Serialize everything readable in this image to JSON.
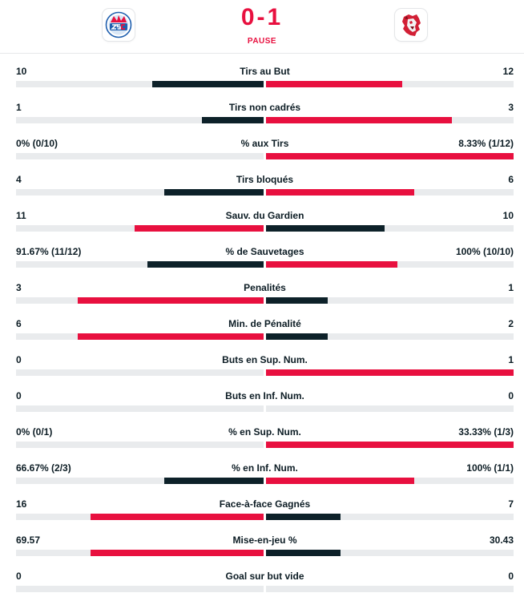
{
  "header": {
    "home_logo": "zsc-lions-logo",
    "away_logo": "lausanne-lion-logo",
    "score": "0-1",
    "status": "PAUSE"
  },
  "colors": {
    "leader": "#e8103f",
    "trailer": "#0d2129",
    "track": "#e9ebed"
  },
  "stats": [
    {
      "label": "Tirs au But",
      "left": "10",
      "right": "12",
      "left_fill": 0.45,
      "right_fill": 0.55,
      "lead": "right"
    },
    {
      "label": "Tirs non cadrés",
      "left": "1",
      "right": "3",
      "left_fill": 0.25,
      "right_fill": 0.75,
      "lead": "right"
    },
    {
      "label": "% aux Tirs",
      "left": "0% (0/10)",
      "right": "8.33% (1/12)",
      "left_fill": 0,
      "right_fill": 1,
      "lead": "right"
    },
    {
      "label": "Tirs bloqués",
      "left": "4",
      "right": "6",
      "left_fill": 0.4,
      "right_fill": 0.6,
      "lead": "right"
    },
    {
      "label": "Sauv. du Gardien",
      "left": "11",
      "right": "10",
      "left_fill": 0.52,
      "right_fill": 0.48,
      "lead": "left"
    },
    {
      "label": "% de Sauvetages",
      "left": "91.67% (11/12)",
      "right": "100% (10/10)",
      "left_fill": 0.47,
      "right_fill": 0.53,
      "lead": "right"
    },
    {
      "label": "Penalités",
      "left": "3",
      "right": "1",
      "left_fill": 0.75,
      "right_fill": 0.25,
      "lead": "left"
    },
    {
      "label": "Min. de Pénalité",
      "left": "6",
      "right": "2",
      "left_fill": 0.75,
      "right_fill": 0.25,
      "lead": "left"
    },
    {
      "label": "Buts en Sup. Num.",
      "left": "0",
      "right": "1",
      "left_fill": 0,
      "right_fill": 1,
      "lead": "right"
    },
    {
      "label": "Buts en Inf. Num.",
      "left": "0",
      "right": "0",
      "left_fill": 0,
      "right_fill": 0,
      "lead": "none"
    },
    {
      "label": "% en Sup. Num.",
      "left": "0% (0/1)",
      "right": "33.33% (1/3)",
      "left_fill": 0,
      "right_fill": 1,
      "lead": "right"
    },
    {
      "label": "% en Inf. Num.",
      "left": "66.67% (2/3)",
      "right": "100% (1/1)",
      "left_fill": 0.4,
      "right_fill": 0.6,
      "lead": "right"
    },
    {
      "label": "Face-à-face Gagnés",
      "left": "16",
      "right": "7",
      "left_fill": 0.7,
      "right_fill": 0.3,
      "lead": "left"
    },
    {
      "label": "Mise-en-jeu %",
      "left": "69.57",
      "right": "30.43",
      "left_fill": 0.7,
      "right_fill": 0.3,
      "lead": "left"
    },
    {
      "label": "Goal sur but vide",
      "left": "0",
      "right": "0",
      "left_fill": 0,
      "right_fill": 0,
      "lead": "none"
    }
  ]
}
